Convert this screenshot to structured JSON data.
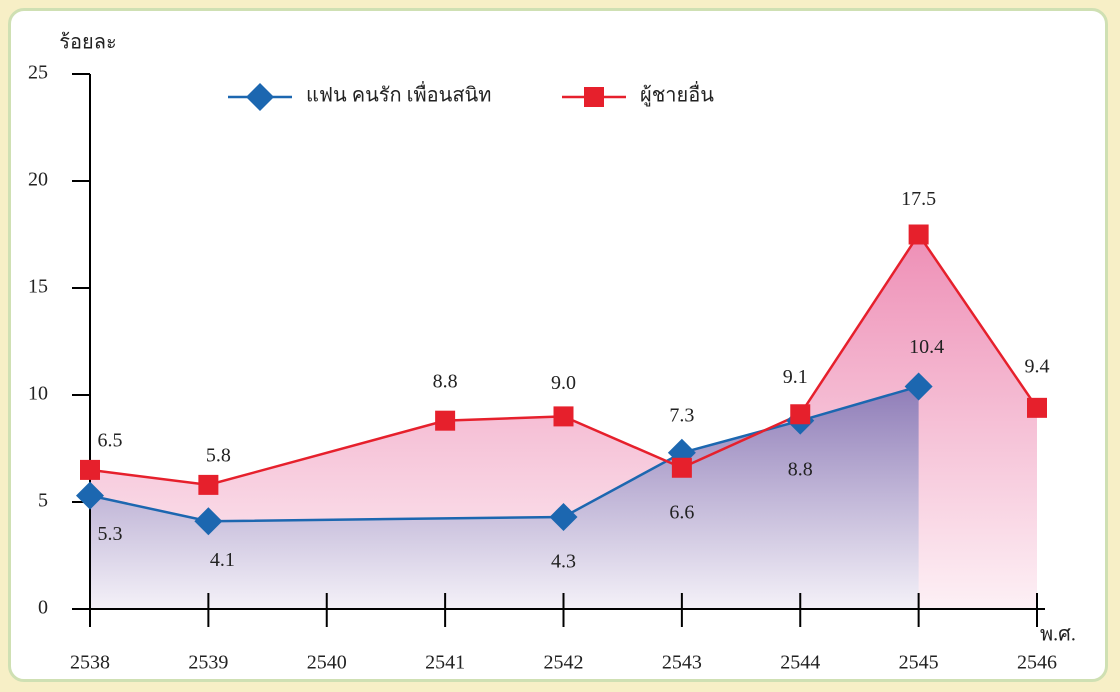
{
  "chart_data": {
    "type": "line",
    "y_label": "ร้อยละ",
    "x_label": "พ.ศ.",
    "xlim": [
      2538,
      2546
    ],
    "xticks": [
      2538,
      2539,
      2540,
      2541,
      2542,
      2543,
      2544,
      2545,
      2546
    ],
    "ylim": [
      0,
      25
    ],
    "yticks": [
      0,
      5,
      10,
      15,
      20,
      25
    ],
    "series": [
      {
        "name": "แฟน คนรัก เพื่อนสนิท",
        "color": "#1c67b0",
        "marker": "diamond",
        "x": [
          2538,
          2539,
          2542,
          2543,
          2544,
          2545
        ],
        "values": [
          5.3,
          4.1,
          4.3,
          7.3,
          8.8,
          10.4
        ],
        "value_labels": [
          "5.3",
          "4.1",
          "4.3",
          "7.3",
          "8.8",
          "10.4"
        ]
      },
      {
        "name": "ผู้ชายอื่น",
        "color": "#e6202c",
        "marker": "square",
        "x": [
          2538,
          2539,
          2541,
          2542,
          2543,
          2544,
          2545,
          2546
        ],
        "values": [
          6.5,
          5.8,
          8.8,
          9.0,
          6.6,
          9.1,
          17.5,
          9.4
        ],
        "value_labels": [
          "6.5",
          "5.8",
          "8.8",
          "9.0",
          "6.6",
          "9.1",
          "17.5",
          "9.4"
        ]
      }
    ]
  }
}
